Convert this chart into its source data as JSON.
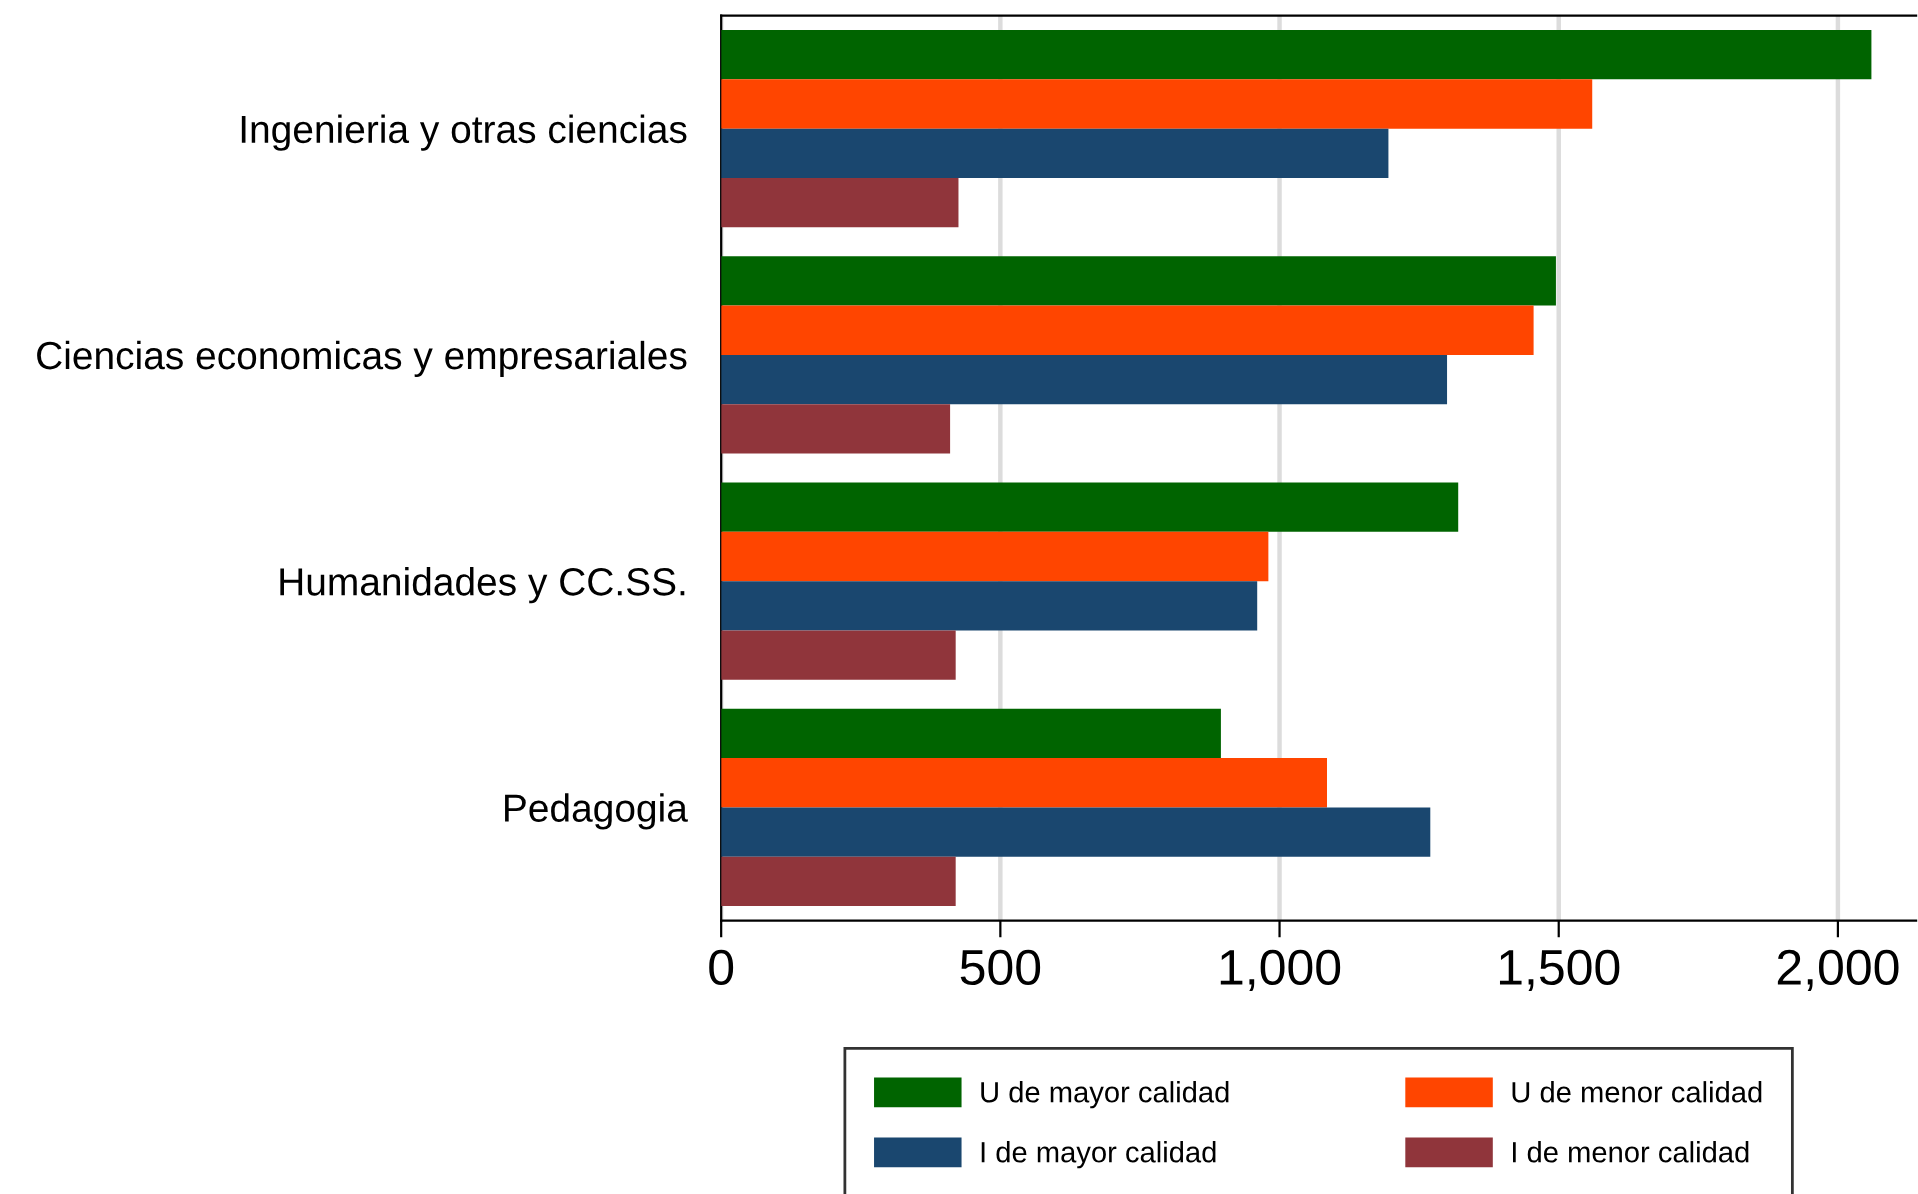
{
  "chart_data": {
    "type": "bar",
    "orientation": "horizontal",
    "categories": [
      "Ingenieria y otras ciencias",
      "Ciencias economicas y empresariales",
      "Humanidades y CC.SS.",
      "Pedagogia"
    ],
    "series": [
      {
        "name": "U de mayor calidad",
        "color": "#006400",
        "values": [
          2060,
          1495,
          1320,
          895
        ]
      },
      {
        "name": "U de menor calidad",
        "color": "#ff4500",
        "values": [
          1560,
          1455,
          980,
          1085
        ]
      },
      {
        "name": "I de mayor calidad",
        "color": "#1a476f",
        "values": [
          1195,
          1300,
          960,
          1270
        ]
      },
      {
        "name": "I de menor calidad",
        "color": "#90353b",
        "values": [
          425,
          410,
          420,
          420
        ]
      }
    ],
    "xlim": [
      0,
      2140
    ],
    "xticks": [
      0,
      500,
      {
        "value": 1000,
        "label": "1,000"
      },
      {
        "value": 1500,
        "label": "1,500"
      },
      {
        "value": 2000,
        "label": "2,000"
      }
    ],
    "grid": "x",
    "legend": "bottom"
  }
}
